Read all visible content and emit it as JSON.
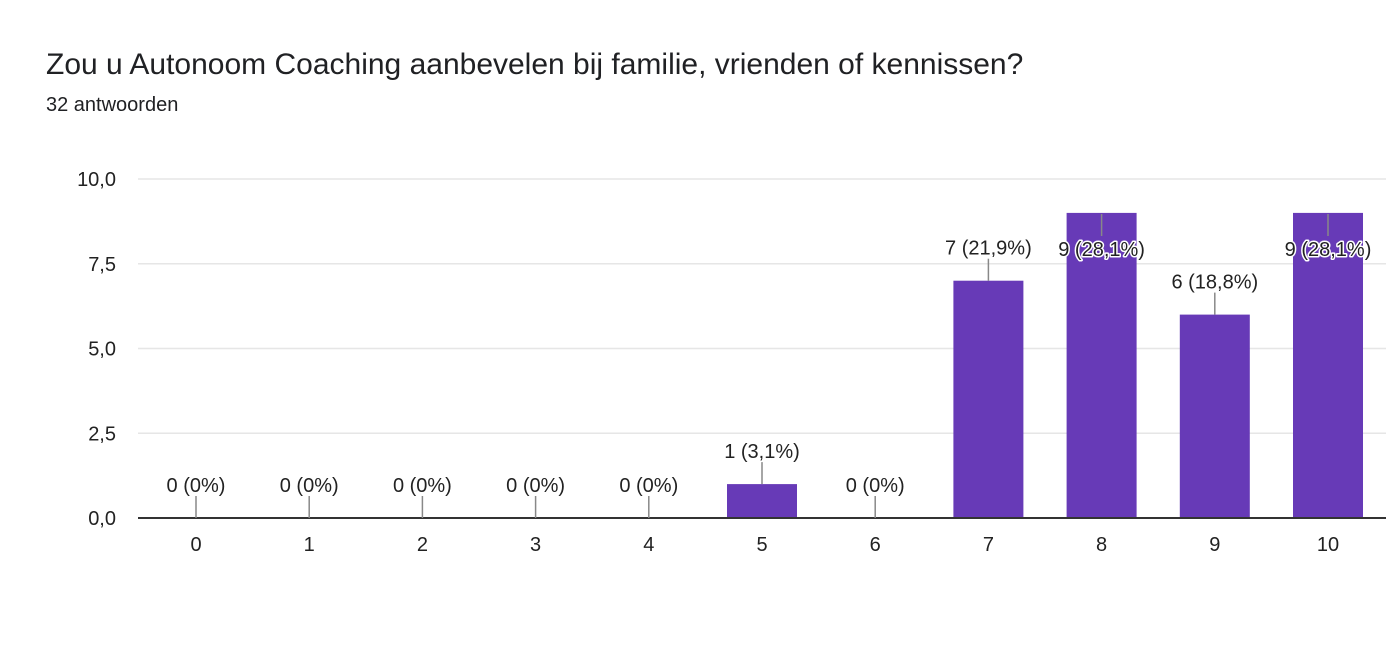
{
  "header": {
    "title": "Zou u Autonoom Coaching aanbevelen bij familie, vrienden of kennissen?",
    "subtitle": "32 antwoorden"
  },
  "colors": {
    "bar": "#673ab7",
    "gridline": "#e6e6e6",
    "axis": "#333333",
    "text": "#222222",
    "leader": "#888888"
  },
  "chart_data": {
    "type": "bar",
    "title": "Zou u Autonoom Coaching aanbevelen bij familie, vrienden of kennissen?",
    "subtitle": "32 antwoorden",
    "xlabel": "",
    "ylabel": "",
    "categories": [
      "0",
      "1",
      "2",
      "3",
      "4",
      "5",
      "6",
      "7",
      "8",
      "9",
      "10"
    ],
    "values": [
      0,
      0,
      0,
      0,
      0,
      1,
      0,
      7,
      9,
      6,
      9
    ],
    "data_labels": [
      "0 (0%)",
      "0 (0%)",
      "0 (0%)",
      "0 (0%)",
      "0 (0%)",
      "1 (3,1%)",
      "0 (0%)",
      "7 (21,9%)",
      "9 (28,1%)",
      "6 (18,8%)",
      "9 (28,1%)"
    ],
    "ylim": [
      0,
      10
    ],
    "yticks": [
      0,
      2.5,
      5,
      7.5,
      10
    ],
    "ytick_labels": [
      "0,0",
      "2,5",
      "5,0",
      "7,5",
      "10,0"
    ],
    "grid": true,
    "legend": "none"
  }
}
